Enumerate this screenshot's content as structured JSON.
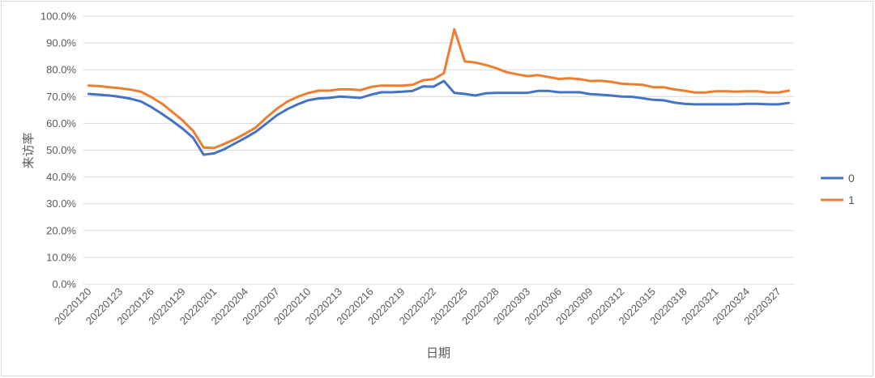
{
  "chart_data": {
    "type": "line",
    "title": "",
    "xlabel": "日期",
    "ylabel": "来访率",
    "ylim": [
      0,
      100
    ],
    "y_ticks": [
      "0.0%",
      "10.0%",
      "20.0%",
      "30.0%",
      "40.0%",
      "50.0%",
      "60.0%",
      "70.0%",
      "80.0%",
      "90.0%",
      "100.0%"
    ],
    "grid": "horizontal",
    "legend_position": "right",
    "x_tick_labels": [
      "20220120",
      "20220123",
      "20220126",
      "20220129",
      "20220201",
      "20220204",
      "20220207",
      "20220210",
      "20220213",
      "20220216",
      "20220219",
      "20220222",
      "20220225",
      "20220228",
      "20220303",
      "20220306",
      "20220309",
      "20220312",
      "20220315",
      "20220318",
      "20220321",
      "20220324",
      "20220327"
    ],
    "x": [
      "20220120",
      "20220121",
      "20220122",
      "20220123",
      "20220124",
      "20220125",
      "20220126",
      "20220127",
      "20220128",
      "20220129",
      "20220130",
      "20220131",
      "20220201",
      "20220202",
      "20220203",
      "20220204",
      "20220205",
      "20220206",
      "20220207",
      "20220208",
      "20220209",
      "20220210",
      "20220211",
      "20220212",
      "20220213",
      "20220214",
      "20220215",
      "20220216",
      "20220217",
      "20220218",
      "20220219",
      "20220220",
      "20220221",
      "20220222",
      "20220223",
      "20220224",
      "20220225",
      "20220226",
      "20220227",
      "20220228",
      "20220301",
      "20220302",
      "20220303",
      "20220304",
      "20220305",
      "20220306",
      "20220307",
      "20220308",
      "20220309",
      "20220310",
      "20220311",
      "20220312",
      "20220313",
      "20220314",
      "20220315",
      "20220316",
      "20220317",
      "20220318",
      "20220319",
      "20220320",
      "20220321",
      "20220322",
      "20220323",
      "20220324",
      "20220325",
      "20220326",
      "20220327",
      "20220328"
    ],
    "series": [
      {
        "name": "0",
        "color": "#4472c4",
        "values": [
          71.0,
          70.7,
          70.4,
          69.9,
          69.2,
          68.2,
          66.1,
          63.6,
          60.9,
          58.0,
          54.6,
          48.3,
          48.8,
          50.4,
          52.5,
          54.6,
          56.9,
          59.9,
          63.0,
          65.3,
          67.1,
          68.6,
          69.3,
          69.5,
          70.0,
          69.8,
          69.5,
          70.7,
          71.6,
          71.6,
          71.8,
          72.1,
          73.8,
          73.7,
          75.8,
          71.4,
          71.0,
          70.4,
          71.2,
          71.4,
          71.4,
          71.4,
          71.4,
          72.1,
          72.1,
          71.6,
          71.6,
          71.6,
          70.9,
          70.7,
          70.4,
          70.0,
          69.9,
          69.4,
          68.8,
          68.6,
          67.8,
          67.3,
          67.1,
          67.1,
          67.1,
          67.1,
          67.1,
          67.3,
          67.3,
          67.1,
          67.1,
          67.6
        ]
      },
      {
        "name": "1",
        "color": "#ed7d31",
        "values": [
          74.1,
          73.9,
          73.5,
          73.1,
          72.6,
          71.8,
          69.8,
          67.4,
          64.3,
          61.1,
          57.2,
          51.0,
          50.8,
          52.4,
          54.1,
          56.2,
          58.5,
          62.1,
          65.4,
          68.1,
          69.9,
          71.3,
          72.2,
          72.2,
          72.7,
          72.7,
          72.4,
          73.6,
          74.1,
          74.1,
          74.1,
          74.4,
          76.1,
          76.5,
          78.7,
          95.1,
          83.1,
          82.7,
          81.8,
          80.6,
          79.1,
          78.3,
          77.6,
          78.0,
          77.3,
          76.6,
          76.8,
          76.5,
          75.8,
          75.9,
          75.5,
          74.8,
          74.6,
          74.4,
          73.5,
          73.5,
          72.7,
          72.2,
          71.5,
          71.5,
          72.0,
          72.0,
          71.8,
          72.0,
          72.0,
          71.5,
          71.5,
          72.2
        ]
      }
    ]
  }
}
